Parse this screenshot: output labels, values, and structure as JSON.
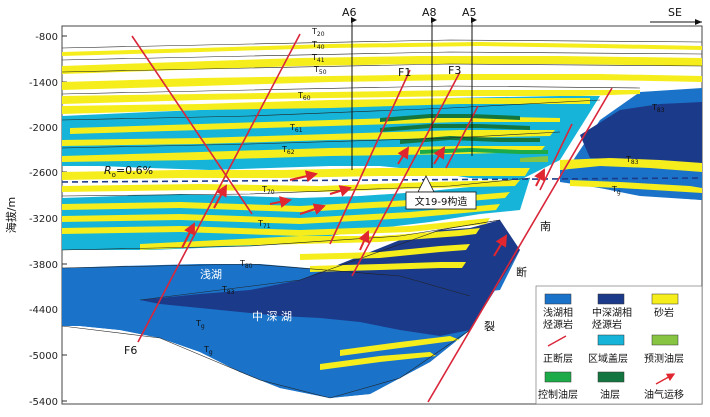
{
  "yaxis": {
    "label": "海拔/m",
    "ticks": [
      "-800",
      "-1400",
      "-2000",
      "-2600",
      "-3200",
      "-3800",
      "-4400",
      "-5000",
      "-5400"
    ]
  },
  "direction": "SE",
  "wells": [
    "A6",
    "A8",
    "A5"
  ],
  "faults": {
    "f1": "F1",
    "f3": "F3",
    "f6": "F6"
  },
  "fault_zone_chars": [
    "南",
    "断",
    "裂"
  ],
  "horizons": [
    {
      "base": "T",
      "sub": "20"
    },
    {
      "base": "T",
      "sub": "40"
    },
    {
      "base": "T",
      "sub": "41"
    },
    {
      "base": "T",
      "sub": "50"
    },
    {
      "base": "T",
      "sub": "60"
    },
    {
      "base": "T",
      "sub": "61"
    },
    {
      "base": "T",
      "sub": "62"
    },
    {
      "base": "T",
      "sub": "70"
    },
    {
      "base": "T",
      "sub": "71"
    },
    {
      "base": "T",
      "sub": "80"
    },
    {
      "base": "T",
      "sub": "83"
    },
    {
      "base": "T",
      "sub": "g"
    },
    {
      "base": "T",
      "sub": "83"
    },
    {
      "base": "T",
      "sub": "83"
    },
    {
      "base": "T",
      "sub": "g"
    },
    {
      "base": "T",
      "sub": "g"
    }
  ],
  "ro_line": {
    "r": "R",
    "sub": "o",
    "value": "=0.6%"
  },
  "structure_label": "文19-9构造",
  "units": {
    "shallow_lake": "浅湖",
    "deep_lake": "中 深 湖"
  },
  "legend": {
    "shallow_lake_source": [
      "浅湖相",
      "烃源岩"
    ],
    "deep_lake_source": [
      "中深湖相",
      "烃源岩"
    ],
    "sandstone": "砂岩",
    "normal_fault": "正断层",
    "regional_seal": "区域盖层",
    "predicted_oil": "预测油层",
    "proven_oil": "控制油层",
    "oil_layer": "油层",
    "migration": "油气运移"
  },
  "colors": {
    "shallow_lake": "#1a73c9",
    "deep_lake": "#1c3a8a",
    "sandstone": "#f5ee1c",
    "regional_seal": "#16b4d8",
    "predicted_oil": "#86c442",
    "proven_oil": "#1cab48",
    "oil_layer": "#137640",
    "fault": "#d9263a",
    "migration": "#e0262e"
  }
}
